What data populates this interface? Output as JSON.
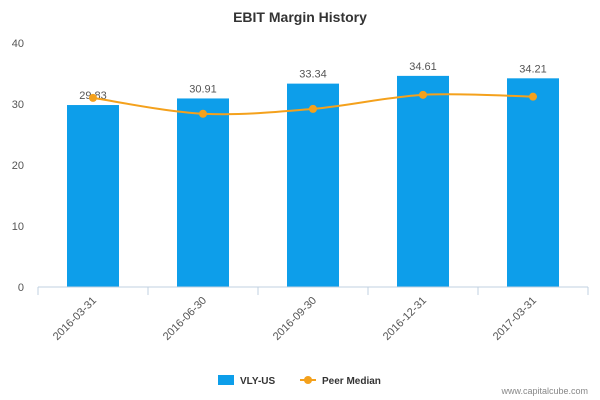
{
  "chart_data": {
    "type": "bar",
    "title": "EBIT Margin History",
    "categories": [
      "2016-03-31",
      "2016-06-30",
      "2016-09-30",
      "2016-12-31",
      "2017-03-31"
    ],
    "series": [
      {
        "name": "VLY-US",
        "type": "bar",
        "color": "#0d9eea",
        "values": [
          29.83,
          30.91,
          33.34,
          34.61,
          34.21
        ],
        "labels": [
          "29.83",
          "30.91",
          "33.34",
          "34.61",
          "34.21"
        ]
      },
      {
        "name": "Peer Median",
        "type": "line",
        "color": "#f4a11c",
        "values": [
          31.0,
          28.4,
          29.2,
          31.5,
          31.2
        ]
      }
    ],
    "ylim": [
      0,
      40
    ],
    "yticks": [
      0,
      10,
      20,
      30,
      40
    ],
    "legend": "bottom-center",
    "grid": false
  },
  "credit": "www.capitalcube.com"
}
